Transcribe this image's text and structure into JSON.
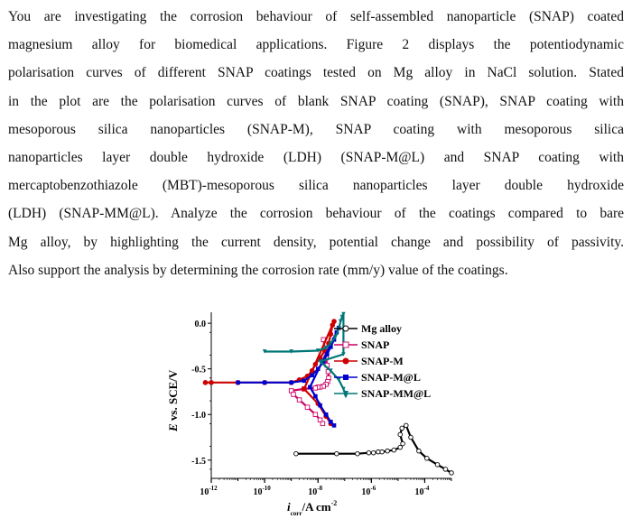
{
  "question": {
    "lines": [
      "You are investigating the corrosion behaviour of self-assembled nanoparticle (SNAP) coated",
      "magnesium alloy for biomedical applications. Figure 2 displays the potentiodynamic",
      "polarisation curves of different SNAP coatings tested on Mg alloy in NaCl solution. Stated",
      "in the plot are the polarisation curves of blank SNAP coating (SNAP), SNAP coating with",
      "mesoporous silica nanoparticles (SNAP-M), SNAP coating with mesoporous silica",
      "nanoparticles layer double hydroxide (LDH) (SNAP-M@L) and SNAP coating with",
      "mercaptobenzothiazole (MBT)-mesoporous silica nanoparticles layer double hydroxide",
      "(LDH) (SNAP-MM@L). Analyze the corrosion behaviour of the coatings compared to bare",
      "Mg alloy, by highlighting the current density, potential change and possibility of passivity.",
      "Also support the analysis by determining the corrosion rate (mm/y) value of the coatings."
    ]
  },
  "chart_data": {
    "type": "line",
    "title": "",
    "xlabel": "i_corr /A cm^-2",
    "xlabel_parts": {
      "italic": "i",
      "sub": "corr",
      "main": "/A cm",
      "sup": "-2"
    },
    "ylabel": "E vs. SCE/V",
    "ylabel_parts": {
      "italic": "E",
      "rest": " vs. SCE/V"
    },
    "x_scale": "log",
    "xlim": [
      1e-12,
      0.001
    ],
    "ylim": [
      -1.7,
      0.12
    ],
    "x_ticks": [
      {
        "value": 1e-12,
        "base": "10",
        "exp": "-12"
      },
      {
        "value": 1e-10,
        "base": "10",
        "exp": "-10"
      },
      {
        "value": 1e-08,
        "base": "10",
        "exp": "-8"
      },
      {
        "value": 1e-06,
        "base": "10",
        "exp": "-6"
      },
      {
        "value": 0.0001,
        "base": "10",
        "exp": "-4"
      }
    ],
    "y_ticks": [
      {
        "value": 0.0,
        "label": "0.0"
      },
      {
        "value": -0.5,
        "label": "-0.5"
      },
      {
        "value": -1.0,
        "label": "-1.0"
      },
      {
        "value": -1.5,
        "label": "-1.5"
      }
    ],
    "grid": false,
    "legend_position": "top-right",
    "series": [
      {
        "name": "Mg alloy",
        "color": "#000000",
        "marker": "circle-open",
        "x": [
          1.5e-09,
          5e-08,
          3e-07,
          8e-07,
          1.2e-06,
          1.8e-06,
          2.5e-06,
          4e-06,
          7e-06,
          1.2e-05,
          1.5e-05,
          1.2e-05,
          1.4e-05,
          2e-05,
          3e-05,
          6e-05,
          0.00012,
          0.0003,
          0.0006,
          0.001
        ],
        "y": [
          -1.43,
          -1.43,
          -1.43,
          -1.42,
          -1.42,
          -1.41,
          -1.41,
          -1.4,
          -1.39,
          -1.36,
          -1.32,
          -1.22,
          -1.15,
          -1.12,
          -1.25,
          -1.4,
          -1.48,
          -1.55,
          -1.6,
          -1.64
        ]
      },
      {
        "name": "SNAP",
        "color": "#cc0066",
        "marker": "square-open",
        "x": [
          1.6e-08,
          1.8e-08,
          2e-08,
          2.2e-08,
          2.4e-08,
          2.5e-08,
          2.3e-08,
          2e-08,
          1.6e-08,
          1.2e-08,
          1e-08,
          8e-09,
          3e-09,
          1e-09,
          1.2e-09,
          2e-09,
          4e-09,
          8e-09,
          1.2e-08,
          1.5e-08
        ],
        "y": [
          -0.18,
          -0.28,
          -0.38,
          -0.46,
          -0.53,
          -0.6,
          -0.64,
          -0.67,
          -0.69,
          -0.7,
          -0.7,
          -0.71,
          -0.72,
          -0.74,
          -0.78,
          -0.84,
          -0.92,
          -1.0,
          -1.06,
          -1.1
        ]
      },
      {
        "name": "SNAP-M",
        "color": "#cc0000",
        "marker": "circle-filled",
        "x": [
          6e-13,
          1e-12,
          1e-11,
          1e-10,
          1e-09,
          2e-09,
          4e-09,
          6e-09,
          8e-09,
          1.2e-08,
          1.8e-08,
          2.5e-08,
          3e-08,
          3.5e-08,
          4e-08,
          3e-09,
          1e-08,
          2e-08,
          3e-08
        ],
        "y": [
          -0.65,
          -0.65,
          -0.65,
          -0.65,
          -0.65,
          -0.62,
          -0.58,
          -0.52,
          -0.45,
          -0.38,
          -0.3,
          -0.22,
          -0.12,
          -0.02,
          0.02,
          -0.72,
          -0.88,
          -1.02,
          -1.1
        ]
      },
      {
        "name": "SNAP-M@L",
        "color": "#0000cc",
        "marker": "square-filled",
        "x": [
          1e-11,
          1e-10,
          1e-09,
          3e-09,
          6e-09,
          1e-08,
          1.6e-08,
          2.2e-08,
          3e-08,
          4e-08,
          5e-08,
          6e-08,
          5e-09,
          8e-09,
          1.2e-08,
          2e-08,
          3e-08,
          4e-08
        ],
        "y": [
          -0.65,
          -0.65,
          -0.65,
          -0.63,
          -0.57,
          -0.5,
          -0.42,
          -0.34,
          -0.26,
          -0.18,
          -0.1,
          -0.05,
          -0.7,
          -0.8,
          -0.9,
          -1.0,
          -1.08,
          -1.12
        ]
      },
      {
        "name": "SNAP-MM@L",
        "color": "#007777",
        "marker": "triangle-down",
        "x": [
          1e-10,
          1e-09,
          1e-08,
          2e-08,
          3e-08,
          4.5e-08,
          6e-08,
          7e-08,
          8e-08,
          9e-08,
          9e-08,
          1.2e-08,
          3e-08,
          6e-08,
          9e-08,
          1.1e-07
        ],
        "y": [
          -0.31,
          -0.31,
          -0.3,
          -0.27,
          -0.22,
          -0.15,
          -0.06,
          0.02,
          0.07,
          0.1,
          -0.34,
          -0.42,
          -0.52,
          -0.62,
          -0.72,
          -0.8
        ]
      }
    ]
  }
}
